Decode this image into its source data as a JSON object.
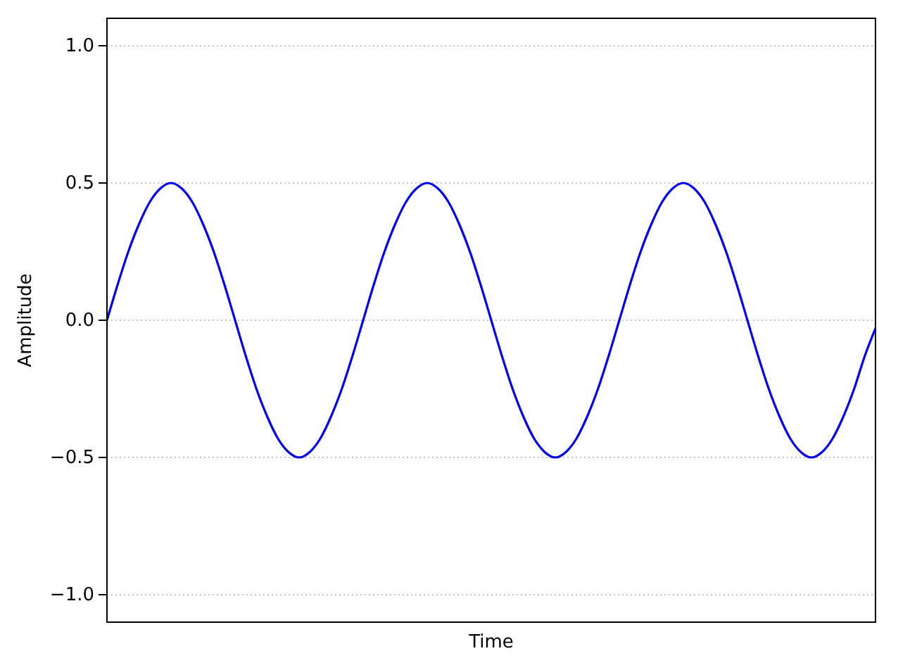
{
  "chart_data": {
    "type": "line",
    "xlabel": "Time",
    "ylabel": "Amplitude",
    "categories": [
      null,
      null,
      null,
      null,
      null,
      null,
      null,
      null,
      null,
      null,
      null,
      null,
      null,
      null,
      null,
      null,
      null,
      null,
      null,
      null,
      null,
      null,
      null,
      null,
      null,
      null,
      null,
      null,
      null,
      null,
      null,
      null,
      null,
      null,
      null,
      null,
      null,
      null,
      null,
      null,
      null,
      null,
      null,
      null,
      null,
      null,
      null,
      null,
      null,
      null,
      null,
      null,
      null,
      null,
      null,
      null,
      null,
      null,
      null,
      null,
      null,
      null,
      null,
      null,
      null,
      null,
      null,
      null,
      null,
      null,
      null,
      null,
      null
    ],
    "series": [
      {
        "color": "#0000ff",
        "values": [
          0,
          0.13,
          0.25,
          0.35,
          0.43,
          0.48,
          0.5,
          0.48,
          0.43,
          0.35,
          0.25,
          0.13,
          0,
          -0.13,
          -0.25,
          -0.35,
          -0.43,
          -0.48,
          -0.5,
          -0.48,
          -0.43,
          -0.35,
          -0.25,
          -0.13,
          0,
          0.13,
          0.25,
          0.35,
          0.43,
          0.48,
          0.5,
          0.48,
          0.43,
          0.35,
          0.25,
          0.13,
          0,
          -0.13,
          -0.25,
          -0.35,
          -0.43,
          -0.48,
          -0.5,
          -0.48,
          -0.43,
          -0.35,
          -0.25,
          -0.13,
          0,
          0.13,
          0.25,
          0.35,
          0.43,
          0.48,
          0.5,
          0.48,
          0.43,
          0.35,
          0.25,
          0.13,
          0,
          -0.13,
          -0.25,
          -0.35,
          -0.43,
          -0.48,
          -0.5,
          -0.48,
          -0.43,
          -0.35,
          -0.25,
          -0.13,
          -0.03
        ]
      }
    ],
    "ylim": [
      -1.1,
      1.1
    ],
    "yticks": [
      {
        "value": -1,
        "label": "−1.0"
      },
      {
        "value": -0.5,
        "label": "−0.5"
      },
      {
        "value": 0,
        "label": "0.0"
      },
      {
        "value": 0.5,
        "label": "0.5"
      },
      {
        "value": 1,
        "label": "1.0"
      }
    ],
    "grid": "y",
    "tick_labels": "y"
  }
}
